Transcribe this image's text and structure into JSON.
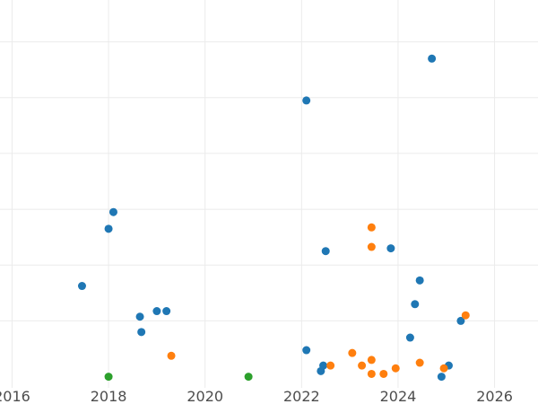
{
  "chart_data": {
    "type": "scatter",
    "title": "",
    "xlabel": "",
    "ylabel": "",
    "xlim": [
      2015.75,
      2026.9
    ],
    "ylim": [
      -0.4,
      13.5
    ],
    "grid": true,
    "legend": "none",
    "x_ticks": [
      {
        "value": 2016,
        "label": "2016"
      },
      {
        "value": 2018,
        "label": "2018"
      },
      {
        "value": 2020,
        "label": "2020"
      },
      {
        "value": 2022,
        "label": "2022"
      },
      {
        "value": 2024,
        "label": "2024"
      },
      {
        "value": 2026,
        "label": "2026"
      }
    ],
    "y_grid": [
      2,
      4,
      6,
      8,
      10,
      12
    ],
    "series": [
      {
        "color": "#1f77b4",
        "points": [
          [
            2017.45,
            3.25
          ],
          [
            2018.0,
            5.3
          ],
          [
            2018.1,
            5.9
          ],
          [
            2018.65,
            2.15
          ],
          [
            2018.68,
            1.6
          ],
          [
            2019.0,
            2.35
          ],
          [
            2019.2,
            2.35
          ],
          [
            2022.1,
            0.95
          ],
          [
            2022.1,
            9.9
          ],
          [
            2022.4,
            0.2
          ],
          [
            2022.45,
            0.4
          ],
          [
            2022.5,
            4.5
          ],
          [
            2023.85,
            4.6
          ],
          [
            2024.25,
            1.4
          ],
          [
            2024.35,
            2.6
          ],
          [
            2024.45,
            3.45
          ],
          [
            2024.7,
            11.4
          ],
          [
            2024.9,
            0.0
          ],
          [
            2025.05,
            0.4
          ],
          [
            2025.3,
            2.0
          ]
        ]
      },
      {
        "color": "#ff7f0e",
        "points": [
          [
            2019.3,
            0.75
          ],
          [
            2022.6,
            0.4
          ],
          [
            2023.05,
            0.85
          ],
          [
            2023.25,
            0.4
          ],
          [
            2023.45,
            0.1
          ],
          [
            2023.45,
            0.6
          ],
          [
            2023.45,
            4.65
          ],
          [
            2023.45,
            5.35
          ],
          [
            2023.7,
            0.1
          ],
          [
            2023.95,
            0.3
          ],
          [
            2024.45,
            0.5
          ],
          [
            2024.95,
            0.3
          ],
          [
            2025.4,
            2.2
          ]
        ]
      },
      {
        "color": "#2ca02c",
        "points": [
          [
            2018.0,
            0.0
          ],
          [
            2020.9,
            0.0
          ]
        ]
      }
    ]
  }
}
